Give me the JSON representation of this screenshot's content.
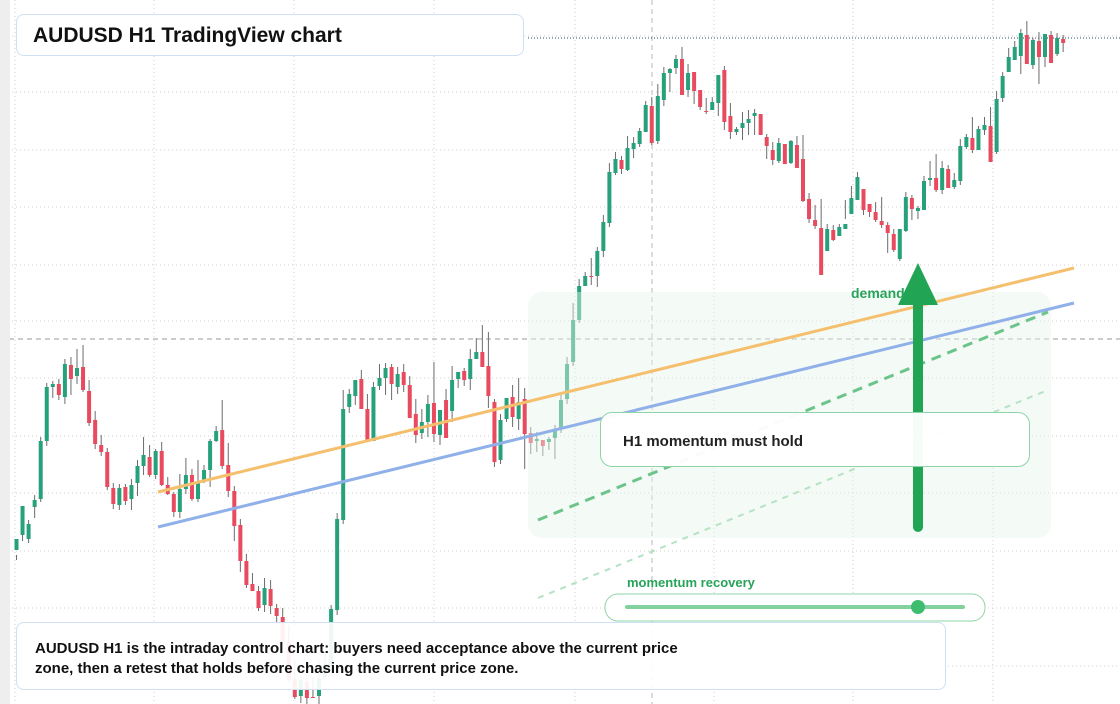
{
  "header": {
    "title": "AUDUSD H1 TradingView chart"
  },
  "annotations": {
    "note_title": "H1 momentum must hold",
    "recovery_label": "momentum recovery",
    "demand_label": "demand "
  },
  "footer": {
    "line1": "AUDUSD H1 is the intraday control chart: buyers need acceptance above the current price",
    "line2": "zone, then a retest that holds before chasing the current price zone."
  },
  "colors": {
    "up": "#26a17b",
    "down": "#e84a5f",
    "wick": "#6b6b6b",
    "orange_line": "#f5c06e",
    "blue_line": "#8fb0e8",
    "accent_green": "#21a555",
    "grid": "#cfcfcf"
  },
  "chart_data": {
    "type": "candlestick",
    "symbol": "AUDUSD",
    "timeframe": "H1",
    "title": "AUDUSD H1 TradingView chart",
    "xlabel": "",
    "ylabel": "",
    "grid": true,
    "ylim": [
      0,
      704
    ],
    "candles_ohlc": [
      [
        550,
        539,
        555,
        560
      ],
      [
        535,
        506,
        541,
        510
      ],
      [
        539,
        524,
        543,
        520
      ],
      [
        507,
        500,
        518,
        495
      ],
      [
        499,
        441,
        502,
        437
      ],
      [
        441,
        387,
        446,
        383
      ],
      [
        387,
        384,
        398,
        381
      ],
      [
        384,
        395,
        400,
        379
      ],
      [
        397,
        364,
        404,
        359
      ],
      [
        365,
        379,
        395,
        357
      ],
      [
        376,
        368,
        384,
        349
      ],
      [
        367,
        390,
        392,
        345
      ],
      [
        391,
        423,
        426,
        380
      ],
      [
        420,
        444,
        449,
        411
      ],
      [
        445,
        452,
        456,
        435
      ],
      [
        452,
        487,
        490,
        448
      ],
      [
        488,
        504,
        509,
        483
      ],
      [
        505,
        488,
        510,
        484
      ],
      [
        487,
        501,
        505,
        484
      ],
      [
        499,
        485,
        510,
        479
      ],
      [
        483,
        466,
        496,
        460
      ],
      [
        466,
        455,
        475,
        437
      ],
      [
        457,
        475,
        477,
        445
      ],
      [
        475,
        451,
        479,
        449
      ],
      [
        451,
        485,
        486,
        442
      ],
      [
        485,
        494,
        495,
        477
      ],
      [
        494,
        512,
        517,
        492
      ],
      [
        512,
        489,
        518,
        474
      ],
      [
        489,
        475,
        494,
        458
      ],
      [
        475,
        499,
        501,
        469
      ],
      [
        499,
        481,
        502,
        460
      ],
      [
        480,
        470,
        483,
        465
      ],
      [
        470,
        441,
        487,
        439
      ],
      [
        441,
        431,
        442,
        426
      ],
      [
        430,
        466,
        469,
        400
      ],
      [
        465,
        491,
        497,
        443
      ],
      [
        491,
        526,
        541,
        486
      ],
      [
        525,
        561,
        572,
        519
      ],
      [
        561,
        585,
        588,
        554
      ],
      [
        584,
        591,
        590,
        573
      ],
      [
        591,
        608,
        611,
        586
      ],
      [
        605,
        588,
        612,
        578
      ],
      [
        589,
        606,
        614,
        580
      ],
      [
        608,
        616,
        622,
        604
      ],
      [
        617,
        642,
        645,
        608
      ],
      [
        642,
        680,
        682,
        625
      ],
      [
        679,
        697,
        699,
        660
      ],
      [
        696,
        680,
        703,
        676
      ],
      [
        682,
        698,
        706,
        677
      ],
      [
        697,
        697,
        698,
        677
      ],
      [
        696,
        678,
        705,
        660
      ],
      [
        677,
        664,
        670,
        651
      ],
      [
        666,
        609,
        676,
        605
      ],
      [
        610,
        519,
        615,
        513
      ],
      [
        520,
        409,
        524,
        390
      ],
      [
        407,
        394,
        413,
        389
      ],
      [
        396,
        380,
        405,
        380
      ],
      [
        379,
        409,
        409,
        370
      ],
      [
        409,
        440,
        440,
        394
      ],
      [
        441,
        387,
        437,
        382
      ],
      [
        386,
        378,
        390,
        364
      ],
      [
        378,
        368,
        395,
        363
      ],
      [
        367,
        384,
        400,
        364
      ],
      [
        387,
        374,
        394,
        367
      ],
      [
        372,
        385,
        392,
        364
      ],
      [
        385,
        418,
        418,
        376
      ],
      [
        414,
        435,
        443,
        399
      ],
      [
        433,
        422,
        439,
        409
      ],
      [
        422,
        404,
        437,
        395
      ],
      [
        403,
        434,
        442,
        362
      ],
      [
        435,
        410,
        445,
        423
      ],
      [
        400,
        438,
        421,
        389
      ],
      [
        411,
        380,
        422,
        366
      ],
      [
        379,
        372,
        388,
        373
      ],
      [
        371,
        380,
        386,
        368
      ],
      [
        379,
        359,
        390,
        349
      ],
      [
        359,
        352,
        358,
        338
      ],
      [
        352,
        367,
        362,
        325
      ],
      [
        366,
        396,
        408,
        332
      ],
      [
        402,
        462,
        467,
        399
      ],
      [
        460,
        420,
        464,
        414
      ],
      [
        419,
        398,
        422,
        407
      ],
      [
        397,
        417,
        427,
        385
      ],
      [
        419,
        402,
        430,
        378
      ],
      [
        399,
        434,
        469,
        388
      ],
      [
        433,
        443,
        454,
        427
      ],
      [
        441,
        439,
        452,
        432
      ],
      [
        440,
        446,
        456,
        443
      ],
      [
        442,
        439,
        450,
        437
      ],
      [
        438,
        430,
        459,
        425
      ],
      [
        428,
        400,
        433,
        392
      ],
      [
        399,
        364,
        404,
        357
      ],
      [
        362,
        320,
        366,
        303
      ],
      [
        320,
        286,
        323,
        279
      ],
      [
        286,
        276,
        286,
        272
      ],
      [
        276,
        276,
        285,
        258
      ],
      [
        276,
        251,
        287,
        247
      ],
      [
        251,
        222,
        257,
        215
      ],
      [
        223,
        172,
        227,
        163
      ],
      [
        173,
        159,
        175,
        152
      ],
      [
        160,
        169,
        174,
        156
      ],
      [
        170,
        148,
        171,
        136
      ],
      [
        149,
        143,
        158,
        137
      ],
      [
        144,
        131,
        147,
        128
      ],
      [
        132,
        105,
        130,
        101
      ],
      [
        106,
        143,
        145,
        97
      ],
      [
        141,
        96,
        144,
        84
      ],
      [
        100,
        73,
        106,
        67
      ],
      [
        73,
        69,
        92,
        68
      ],
      [
        68,
        59,
        74,
        55
      ],
      [
        59,
        95,
        90,
        47
      ],
      [
        90,
        73,
        97,
        64
      ],
      [
        72,
        91,
        104,
        83
      ],
      [
        90,
        107,
        110,
        102
      ],
      [
        111,
        111,
        114,
        98
      ],
      [
        110,
        102,
        107,
        97
      ],
      [
        103,
        75,
        116,
        82
      ],
      [
        70,
        122,
        130,
        66
      ],
      [
        116,
        132,
        139,
        103
      ],
      [
        132,
        129,
        135,
        127
      ],
      [
        128,
        123,
        140,
        112
      ],
      [
        123,
        119,
        135,
        110
      ],
      [
        116,
        113,
        135,
        109
      ],
      [
        114,
        135,
        133,
        126
      ],
      [
        137,
        146,
        159,
        134
      ],
      [
        150,
        160,
        165,
        142
      ],
      [
        161,
        143,
        163,
        138
      ],
      [
        144,
        164,
        162,
        147
      ],
      [
        163,
        141,
        164,
        140
      ],
      [
        145,
        168,
        166,
        136
      ],
      [
        159,
        201,
        202,
        135
      ],
      [
        199,
        219,
        223,
        193
      ],
      [
        220,
        226,
        229,
        205
      ],
      [
        228,
        275,
        272,
        199
      ],
      [
        251,
        229,
        247,
        224
      ],
      [
        230,
        240,
        241,
        225
      ],
      [
        236,
        227,
        229,
        224
      ],
      [
        229,
        224,
        219,
        200
      ],
      [
        214,
        198,
        201,
        186
      ],
      [
        200,
        177,
        190,
        172
      ],
      [
        189,
        210,
        215,
        198
      ],
      [
        204,
        212,
        217,
        206
      ],
      [
        212,
        220,
        222,
        202
      ],
      [
        221,
        225,
        228,
        197
      ],
      [
        225,
        233,
        253,
        222
      ],
      [
        234,
        250,
        252,
        229
      ],
      [
        259,
        229,
        261,
        232
      ],
      [
        231,
        197,
        232,
        192
      ],
      [
        198,
        209,
        220,
        195
      ],
      [
        211,
        208,
        219,
        206
      ],
      [
        210,
        181,
        194,
        176
      ],
      [
        180,
        178,
        186,
        161
      ],
      [
        178,
        190,
        192,
        154
      ],
      [
        190,
        168,
        194,
        161
      ],
      [
        169,
        188,
        187,
        165
      ],
      [
        187,
        180,
        189,
        173
      ],
      [
        181,
        146,
        185,
        139
      ],
      [
        147,
        137,
        149,
        134
      ],
      [
        138,
        150,
        153,
        117
      ],
      [
        150,
        129,
        143,
        126
      ],
      [
        130,
        125,
        135,
        117
      ],
      [
        126,
        162,
        160,
        107
      ],
      [
        152,
        99,
        154,
        91
      ],
      [
        98,
        76,
        102,
        72
      ],
      [
        72,
        57,
        67,
        48
      ],
      [
        60,
        47,
        60,
        41
      ],
      [
        56,
        33,
        74,
        29
      ],
      [
        35,
        64,
        55,
        21
      ],
      [
        65,
        40,
        69,
        38
      ],
      [
        41,
        57,
        84,
        32
      ],
      [
        57,
        34,
        67,
        48
      ],
      [
        35,
        63,
        54,
        31
      ],
      [
        54,
        38,
        56,
        33
      ],
      [
        39,
        43,
        52,
        35
      ]
    ],
    "price_levels": [
      "dotted level near top",
      "dashed level near middle"
    ],
    "trend_lines": [
      "orange rising trendline",
      "blue rising trendline"
    ],
    "arrow": "green upward arrow"
  }
}
